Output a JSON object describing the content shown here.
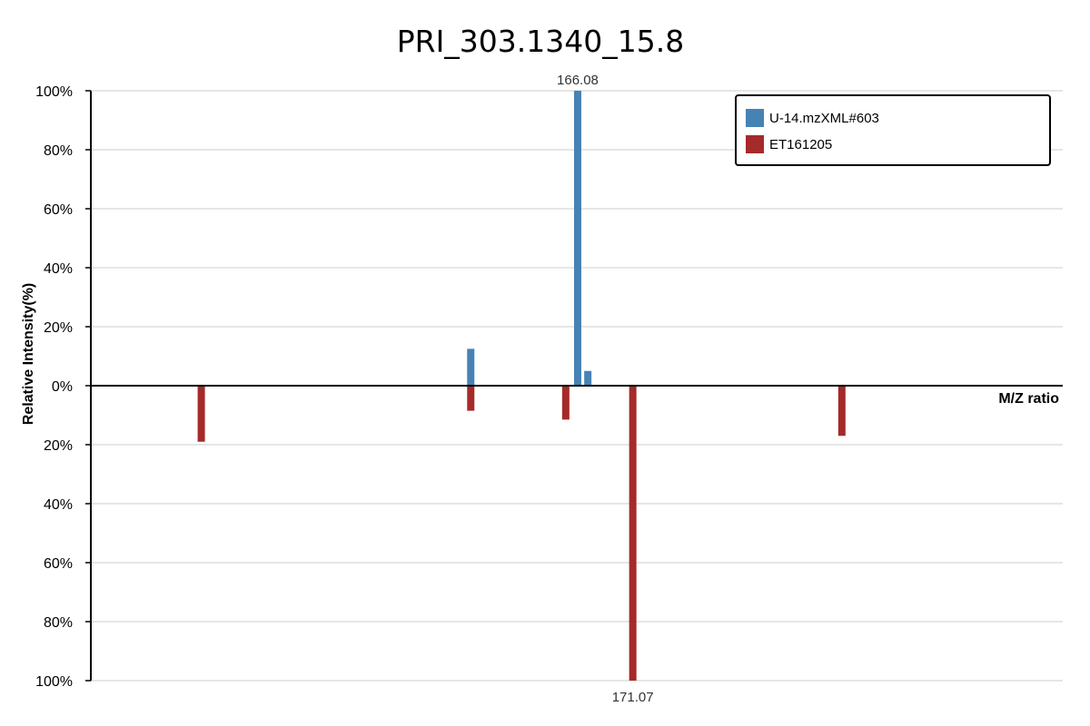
{
  "chart_data": {
    "type": "bar",
    "title": "PRI_303.1340_15.8",
    "xlabel": "M/Z ratio",
    "ylabel": "Relative Intensity(%)",
    "ylim_top": [
      0,
      100
    ],
    "ylim_bottom": [
      0,
      100
    ],
    "y_ticks_top": [
      "0%",
      "20%",
      "40%",
      "60%",
      "80%",
      "100%"
    ],
    "y_ticks_bottom": [
      "20%",
      "40%",
      "60%",
      "80%",
      "100%"
    ],
    "grid": true,
    "legend_position": "top-right",
    "series": [
      {
        "name": "U-14.mzXML#603",
        "color": "#4682b4",
        "direction": "up",
        "x": [
          156.4,
          166.08,
          167.0
        ],
        "values": [
          12.5,
          100,
          5
        ],
        "labels": [
          "",
          "166.08",
          ""
        ]
      },
      {
        "name": "ET161205",
        "color": "#a52a2a",
        "direction": "down",
        "x": [
          132.0,
          156.4,
          165.0,
          171.07,
          190.0
        ],
        "values": [
          19,
          8.5,
          11.5,
          100,
          17
        ],
        "labels": [
          "",
          "",
          "",
          "171.07",
          ""
        ]
      }
    ]
  }
}
